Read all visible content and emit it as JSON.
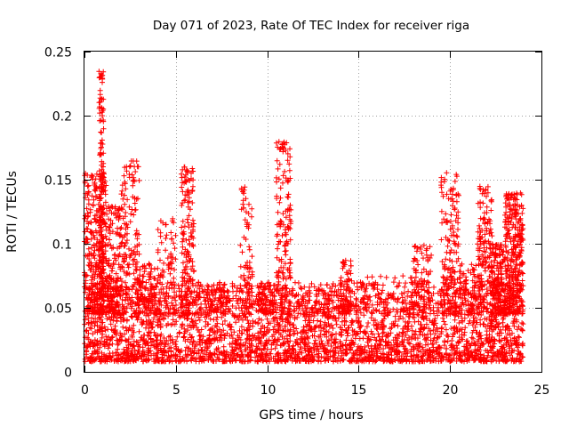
{
  "chart_data": {
    "type": "scatter",
    "title": "Day 071 of 2023, Rate Of TEC Index for receiver riga",
    "xlabel": "GPS time / hours",
    "ylabel": "ROTI / TECUs",
    "xlim": [
      0,
      25
    ],
    "ylim": [
      0,
      0.25
    ],
    "x_ticks": [
      0,
      5,
      10,
      15,
      20,
      25
    ],
    "x_tick_labels": [
      "0",
      "5",
      "10",
      "15",
      "20",
      "25"
    ],
    "y_ticks": [
      0,
      0.05,
      0.1,
      0.15,
      0.2,
      0.25
    ],
    "y_tick_labels": [
      "0",
      "0.05",
      "0.1",
      "0.15",
      "0.2",
      "0.25"
    ],
    "grid": true,
    "marker": "+",
    "color": "#ff0000",
    "baseline_band": [
      0.008,
      0.045
    ],
    "x_range_of_data": [
      0,
      24
    ],
    "bursts": [
      {
        "x_start": 0.0,
        "x_end": 1.2,
        "y_max": 0.155,
        "density": "high"
      },
      {
        "x_start": 0.8,
        "x_end": 1.05,
        "y_max": 0.235,
        "density": "medium"
      },
      {
        "x_start": 1.2,
        "x_end": 2.0,
        "y_max": 0.13,
        "density": "medium"
      },
      {
        "x_start": 2.0,
        "x_end": 3.0,
        "y_max": 0.165,
        "density": "medium"
      },
      {
        "x_start": 3.0,
        "x_end": 4.0,
        "y_max": 0.085,
        "density": "low"
      },
      {
        "x_start": 4.0,
        "x_end": 5.0,
        "y_max": 0.12,
        "density": "low"
      },
      {
        "x_start": 5.3,
        "x_end": 6.0,
        "y_max": 0.16,
        "density": "medium"
      },
      {
        "x_start": 6.0,
        "x_end": 8.0,
        "y_max": 0.07,
        "density": "low"
      },
      {
        "x_start": 8.5,
        "x_end": 9.2,
        "y_max": 0.145,
        "density": "low"
      },
      {
        "x_start": 9.5,
        "x_end": 10.5,
        "y_max": 0.07,
        "density": "low"
      },
      {
        "x_start": 10.5,
        "x_end": 11.3,
        "y_max": 0.18,
        "density": "medium"
      },
      {
        "x_start": 11.3,
        "x_end": 14.0,
        "y_max": 0.065,
        "density": "low"
      },
      {
        "x_start": 14.0,
        "x_end": 14.6,
        "y_max": 0.088,
        "density": "low"
      },
      {
        "x_start": 14.6,
        "x_end": 18.0,
        "y_max": 0.075,
        "density": "low"
      },
      {
        "x_start": 18.0,
        "x_end": 19.0,
        "y_max": 0.1,
        "density": "low"
      },
      {
        "x_start": 19.5,
        "x_end": 20.5,
        "y_max": 0.156,
        "density": "medium"
      },
      {
        "x_start": 20.5,
        "x_end": 21.5,
        "y_max": 0.085,
        "density": "low"
      },
      {
        "x_start": 21.5,
        "x_end": 22.3,
        "y_max": 0.145,
        "density": "medium"
      },
      {
        "x_start": 22.3,
        "x_end": 23.0,
        "y_max": 0.1,
        "density": "medium"
      },
      {
        "x_start": 23.0,
        "x_end": 24.0,
        "y_max": 0.14,
        "density": "high"
      }
    ]
  }
}
